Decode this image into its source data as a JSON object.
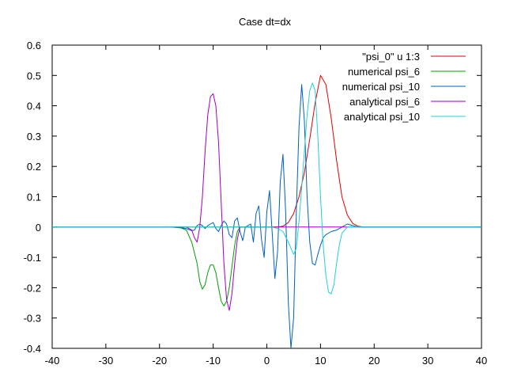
{
  "chart_data": {
    "type": "line",
    "title": "Case dt=dx",
    "xlabel": "",
    "ylabel": "",
    "xlim": [
      -40,
      40
    ],
    "ylim": [
      -0.4,
      0.6
    ],
    "xticks": [
      -40,
      -30,
      -20,
      -10,
      0,
      10,
      20,
      30,
      40
    ],
    "yticks": [
      -0.4,
      -0.3,
      -0.2,
      -0.1,
      0,
      0.1,
      0.2,
      0.3,
      0.4,
      0.5,
      0.6
    ],
    "grid": false,
    "legend_position": "top-right",
    "series": [
      {
        "name": "\"psi_0\" u 1:3",
        "color": "#e00000",
        "points": [
          [
            -40,
            0
          ],
          [
            2,
            0
          ],
          [
            3,
            0.003
          ],
          [
            4,
            0.015
          ],
          [
            5,
            0.045
          ],
          [
            6,
            0.1
          ],
          [
            7,
            0.18
          ],
          [
            8,
            0.29
          ],
          [
            9,
            0.41
          ],
          [
            10,
            0.5
          ],
          [
            11,
            0.47
          ],
          [
            12,
            0.36
          ],
          [
            13,
            0.22
          ],
          [
            14,
            0.1
          ],
          [
            15,
            0.04
          ],
          [
            16,
            0.012
          ],
          [
            17,
            0.003
          ],
          [
            18,
            0
          ],
          [
            40,
            0
          ]
        ]
      },
      {
        "name": "numerical psi_6",
        "color": "#00a000",
        "points": [
          [
            -18,
            0
          ],
          [
            -16,
            -0.003
          ],
          [
            -15,
            -0.01
          ],
          [
            -14,
            -0.05
          ],
          [
            -13,
            -0.12
          ],
          [
            -12.5,
            -0.18
          ],
          [
            -12,
            -0.205
          ],
          [
            -11.5,
            -0.19
          ],
          [
            -11,
            -0.15
          ],
          [
            -10.5,
            -0.125
          ],
          [
            -10,
            -0.125
          ],
          [
            -9.5,
            -0.15
          ],
          [
            -9,
            -0.2
          ],
          [
            -8.5,
            -0.245
          ],
          [
            -8,
            -0.26
          ],
          [
            -7.5,
            -0.245
          ],
          [
            -7,
            -0.2
          ],
          [
            -6.5,
            -0.13
          ],
          [
            -6,
            -0.06
          ],
          [
            -5.5,
            -0.015
          ],
          [
            -5,
            0
          ],
          [
            -3,
            0
          ]
        ]
      },
      {
        "name": "numerical psi_10",
        "color": "#0060c0",
        "points": [
          [
            -17.5,
            0
          ],
          [
            -16,
            -0.002
          ],
          [
            -15,
            -0.005
          ],
          [
            -14,
            -0.012
          ],
          [
            -13.5,
            -0.01
          ],
          [
            -13,
            0.005
          ],
          [
            -12.5,
            0.01
          ],
          [
            -12,
            0.005
          ],
          [
            -11.5,
            -0.005
          ],
          [
            -11,
            0.005
          ],
          [
            -10.5,
            0.01
          ],
          [
            -10,
            0.015
          ],
          [
            -9.5,
            -0.005
          ],
          [
            -9,
            -0.015
          ],
          [
            -8.5,
            0.005
          ],
          [
            -8,
            0.02
          ],
          [
            -7.5,
            0.01
          ],
          [
            -7,
            -0.025
          ],
          [
            -6.5,
            -0.035
          ],
          [
            -6,
            0.02
          ],
          [
            -5.5,
            0.03
          ],
          [
            -5,
            -0.015
          ],
          [
            -4.5,
            -0.045
          ],
          [
            -4,
            0
          ],
          [
            -3.5,
            0.005
          ],
          [
            -3,
            0.01
          ],
          [
            -2.5,
            -0.05
          ],
          [
            -2,
            0.045
          ],
          [
            -1.5,
            0.07
          ],
          [
            -1,
            -0.04
          ],
          [
            -0.5,
            -0.1
          ],
          [
            0,
            0.05
          ],
          [
            0.5,
            0.12
          ],
          [
            1,
            -0.02
          ],
          [
            1.5,
            -0.17
          ],
          [
            2,
            -0.08
          ],
          [
            2.5,
            0.15
          ],
          [
            3,
            0.24
          ],
          [
            3.5,
            0.05
          ],
          [
            4,
            -0.25
          ],
          [
            4.5,
            -0.4
          ],
          [
            5,
            -0.3
          ],
          [
            5.5,
            0.05
          ],
          [
            6,
            0.33
          ],
          [
            6.5,
            0.47
          ],
          [
            7,
            0.35
          ],
          [
            7.5,
            0.1
          ],
          [
            8,
            -0.05
          ],
          [
            8.5,
            -0.12
          ],
          [
            9,
            -0.125
          ],
          [
            9.5,
            -0.09
          ],
          [
            10,
            -0.06
          ],
          [
            10.5,
            -0.035
          ],
          [
            11,
            -0.025
          ],
          [
            12,
            -0.015
          ],
          [
            13,
            -0.01
          ],
          [
            14,
            0
          ],
          [
            15,
            0.01
          ],
          [
            16,
            0.005
          ],
          [
            17,
            0
          ],
          [
            40,
            0
          ]
        ]
      },
      {
        "name": "analytical psi_6",
        "color": "#a000c0",
        "points": [
          [
            -40,
            0
          ],
          [
            -15,
            0
          ],
          [
            -14,
            -0.01
          ],
          [
            -13.5,
            -0.035
          ],
          [
            -13,
            -0.05
          ],
          [
            -12.5,
            0
          ],
          [
            -12,
            0.1
          ],
          [
            -11.5,
            0.25
          ],
          [
            -11,
            0.37
          ],
          [
            -10.5,
            0.43
          ],
          [
            -10,
            0.44
          ],
          [
            -9.5,
            0.4
          ],
          [
            -9,
            0.28
          ],
          [
            -8.5,
            0.08
          ],
          [
            -8,
            -0.12
          ],
          [
            -7.5,
            -0.24
          ],
          [
            -7,
            -0.275
          ],
          [
            -6.5,
            -0.22
          ],
          [
            -6,
            -0.12
          ],
          [
            -5.5,
            -0.04
          ],
          [
            -5,
            0
          ],
          [
            40,
            0
          ]
        ]
      },
      {
        "name": "analytical psi_10",
        "color": "#20d0d8",
        "points": [
          [
            -40,
            0
          ],
          [
            1,
            0
          ],
          [
            2,
            -0.005
          ],
          [
            3,
            -0.015
          ],
          [
            4,
            -0.05
          ],
          [
            5,
            -0.09
          ],
          [
            5.5,
            -0.07
          ],
          [
            6,
            0.02
          ],
          [
            6.5,
            0.13
          ],
          [
            7,
            0.25
          ],
          [
            7.5,
            0.37
          ],
          [
            8,
            0.45
          ],
          [
            8.5,
            0.475
          ],
          [
            9,
            0.45
          ],
          [
            9.5,
            0.3
          ],
          [
            10,
            0.1
          ],
          [
            10.5,
            -0.06
          ],
          [
            11,
            -0.16
          ],
          [
            11.5,
            -0.215
          ],
          [
            12,
            -0.22
          ],
          [
            12.5,
            -0.19
          ],
          [
            13,
            -0.12
          ],
          [
            13.5,
            -0.06
          ],
          [
            14,
            -0.02
          ],
          [
            15,
            0
          ],
          [
            40,
            0
          ]
        ]
      }
    ]
  }
}
